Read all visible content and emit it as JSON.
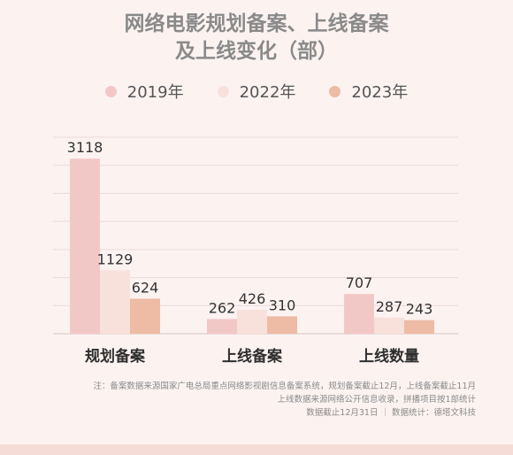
{
  "title_lines": [
    "网络电影规划备案、上线备案",
    "及上线变化（部）"
  ],
  "colors": {
    "2019年": "#f2c8c6",
    "2022年": "#f7e1da",
    "2023年": "#eebba5",
    "grid": "#ead9d6",
    "axis": "#d9c3bf"
  },
  "chart_data": {
    "type": "bar",
    "title": "网络电影规划备案、上线备案及上线变化（部）",
    "categories": [
      "规划备案",
      "上线备案",
      "上线数量"
    ],
    "series": [
      {
        "name": "2019年",
        "values": [
          3118,
          262,
          707
        ]
      },
      {
        "name": "2022年",
        "values": [
          1129,
          426,
          287
        ]
      },
      {
        "name": "2023年",
        "values": [
          624,
          310,
          243
        ]
      }
    ],
    "ylim": [
      0,
      3500
    ],
    "grid": true,
    "legend": "top"
  },
  "notes": {
    "line1": "注：备案数据来源国家广电总局重点网络影视剧信息备案系统，规划备案截止12月，上线备案截止11月",
    "line2": "上线数据来源网络公开信息收录，拼播项目按1部统计",
    "line3": "数据截止12月31日 ｜ 数据统计：德塔文科技"
  }
}
